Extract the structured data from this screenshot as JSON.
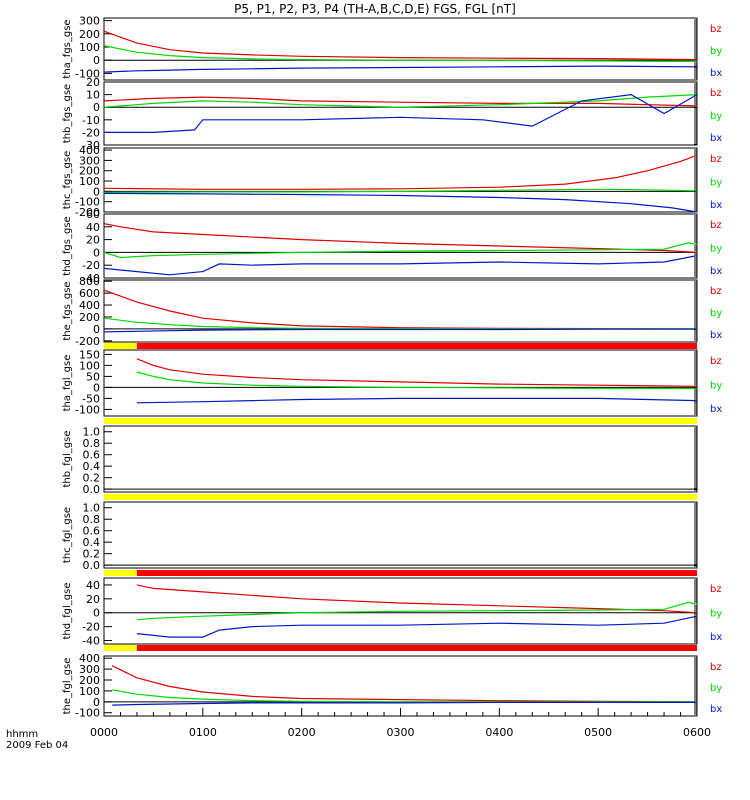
{
  "figure": {
    "title": "P5, P1, P2, P3, P4 (TH-A,B,C,D,E) FGS, FGL [nT]",
    "x_axis_label": "hhmm",
    "date_label": "2009 Feb 04",
    "x_ticks": [
      "0000",
      "0100",
      "0200",
      "0300",
      "0400",
      "0500",
      "0600"
    ],
    "colors": {
      "bx": "#0018c8",
      "by": "#00d800",
      "bz": "#e00000",
      "bar_yellow": "#ffff00",
      "bar_red": "#ff0000"
    }
  },
  "chart_data": [
    {
      "type": "line",
      "ylabel": "tha_fgs_gse",
      "ylim": [
        -150,
        320
      ],
      "yticks": [
        300,
        200,
        100,
        0,
        -100
      ],
      "x_range_min": [
        0,
        360
      ],
      "series": [
        {
          "name": "bz",
          "x": [
            0,
            20,
            40,
            60,
            90,
            120,
            180,
            240,
            300,
            360
          ],
          "values": [
            220,
            130,
            80,
            55,
            40,
            30,
            20,
            15,
            12,
            5
          ]
        },
        {
          "name": "by",
          "x": [
            0,
            20,
            40,
            60,
            90,
            120,
            180,
            240,
            300,
            360
          ],
          "values": [
            110,
            60,
            35,
            20,
            10,
            5,
            0,
            -2,
            -5,
            -10
          ]
        },
        {
          "name": "bx",
          "x": [
            0,
            20,
            40,
            60,
            90,
            120,
            180,
            240,
            300,
            360
          ],
          "values": [
            -90,
            -80,
            -75,
            -70,
            -65,
            -60,
            -55,
            -50,
            -45,
            -50
          ]
        }
      ]
    },
    {
      "type": "line",
      "ylabel": "thb_fgs_gse",
      "ylim": [
        -30,
        20
      ],
      "yticks": [
        20,
        10,
        0,
        -10,
        -20,
        -30
      ],
      "x_range_min": [
        0,
        360
      ],
      "series": [
        {
          "name": "bz",
          "x": [
            0,
            30,
            60,
            90,
            120,
            180,
            240,
            300,
            330,
            360
          ],
          "values": [
            5,
            7,
            8,
            7,
            5,
            4,
            3,
            3,
            2,
            1
          ]
        },
        {
          "name": "by",
          "x": [
            0,
            30,
            60,
            90,
            120,
            180,
            240,
            300,
            330,
            360
          ],
          "values": [
            0,
            3,
            5,
            4,
            2,
            0,
            2,
            5,
            8,
            10
          ]
        },
        {
          "name": "bx",
          "x": [
            0,
            30,
            55,
            60,
            120,
            180,
            230,
            260,
            290,
            320,
            340,
            360
          ],
          "values": [
            -20,
            -20,
            -18,
            -10,
            -10,
            -8,
            -10,
            -15,
            5,
            10,
            -5,
            10
          ]
        }
      ]
    },
    {
      "type": "line",
      "ylabel": "thc_fgs_gse",
      "ylim": [
        -200,
        420
      ],
      "yticks": [
        400,
        300,
        200,
        100,
        0,
        -100,
        -200
      ],
      "x_range_min": [
        0,
        360
      ],
      "series": [
        {
          "name": "bz",
          "x": [
            0,
            60,
            120,
            180,
            240,
            280,
            310,
            330,
            350,
            360
          ],
          "values": [
            30,
            20,
            20,
            25,
            40,
            70,
            130,
            200,
            290,
            350
          ]
        },
        {
          "name": "by",
          "x": [
            0,
            60,
            120,
            180,
            240,
            300,
            330,
            360
          ],
          "values": [
            -10,
            -5,
            -5,
            0,
            10,
            20,
            15,
            5
          ]
        },
        {
          "name": "bx",
          "x": [
            0,
            60,
            120,
            180,
            240,
            280,
            320,
            345,
            360
          ],
          "values": [
            -20,
            -25,
            -30,
            -40,
            -60,
            -80,
            -120,
            -160,
            -200
          ]
        }
      ]
    },
    {
      "type": "line",
      "ylabel": "thd_fgs_gse",
      "ylim": [
        -40,
        60
      ],
      "yticks": [
        60,
        40,
        20,
        0,
        -20,
        -40
      ],
      "x_range_min": [
        0,
        360
      ],
      "series": [
        {
          "name": "bz",
          "x": [
            0,
            10,
            30,
            60,
            120,
            180,
            240,
            300,
            340,
            360
          ],
          "values": [
            45,
            40,
            32,
            28,
            20,
            14,
            10,
            6,
            3,
            0
          ]
        },
        {
          "name": "by",
          "x": [
            0,
            10,
            30,
            60,
            120,
            180,
            240,
            300,
            340,
            355,
            360
          ],
          "values": [
            0,
            -8,
            -5,
            -3,
            0,
            2,
            3,
            4,
            5,
            15,
            12
          ]
        },
        {
          "name": "bx",
          "x": [
            0,
            20,
            40,
            60,
            70,
            90,
            120,
            180,
            240,
            300,
            340,
            360
          ],
          "values": [
            -25,
            -30,
            -35,
            -30,
            -18,
            -20,
            -18,
            -18,
            -15,
            -18,
            -15,
            -5
          ]
        }
      ]
    },
    {
      "type": "line",
      "ylabel": "the_fgs_gse",
      "ylim": [
        -220,
        820
      ],
      "yticks": [
        800,
        600,
        400,
        200,
        0,
        -200
      ],
      "x_range_min": [
        0,
        360
      ],
      "series": [
        {
          "name": "bz",
          "x": [
            0,
            20,
            40,
            60,
            90,
            120,
            180,
            240,
            300,
            360
          ],
          "values": [
            650,
            450,
            300,
            180,
            100,
            50,
            20,
            10,
            5,
            0
          ]
        },
        {
          "name": "by",
          "x": [
            0,
            20,
            40,
            60,
            90,
            120,
            180,
            240,
            300,
            360
          ],
          "values": [
            180,
            110,
            70,
            40,
            20,
            10,
            5,
            0,
            0,
            0
          ]
        },
        {
          "name": "bx",
          "x": [
            0,
            20,
            40,
            60,
            90,
            120,
            180,
            240,
            300,
            360
          ],
          "values": [
            -50,
            -40,
            -30,
            -20,
            -15,
            -10,
            -10,
            -10,
            -5,
            -5
          ]
        }
      ],
      "bar": [
        {
          "color": "yellow",
          "x": [
            0,
            20
          ]
        },
        {
          "color": "red",
          "x": [
            20,
            360
          ]
        }
      ]
    },
    {
      "type": "line",
      "ylabel": "tha_fgl_gse",
      "ylim": [
        -130,
        170
      ],
      "yticks": [
        150,
        100,
        50,
        0,
        -50,
        -100
      ],
      "x_range_min": [
        0,
        360
      ],
      "series": [
        {
          "name": "bz",
          "x": [
            20,
            30,
            40,
            60,
            90,
            120,
            180,
            240,
            300,
            360
          ],
          "values": [
            130,
            100,
            80,
            60,
            45,
            35,
            25,
            15,
            10,
            5
          ]
        },
        {
          "name": "by",
          "x": [
            20,
            30,
            40,
            60,
            90,
            120,
            180,
            240,
            300,
            360
          ],
          "values": [
            70,
            50,
            35,
            20,
            10,
            5,
            0,
            -2,
            -5,
            -5
          ]
        },
        {
          "name": "bx",
          "x": [
            20,
            60,
            90,
            120,
            180,
            240,
            300,
            360
          ],
          "values": [
            -70,
            -65,
            -60,
            -55,
            -50,
            -50,
            -50,
            -60
          ]
        }
      ],
      "bar": [
        {
          "color": "yellow",
          "x": [
            0,
            360
          ]
        }
      ]
    },
    {
      "type": "line",
      "ylabel": "thb_fgl_gse",
      "ylim": [
        -0.05,
        1.1
      ],
      "yticks": [
        1.0,
        0.8,
        0.6,
        0.4,
        0.2,
        0.0
      ],
      "x_range_min": [
        0,
        360
      ],
      "series": [],
      "bar": [
        {
          "color": "yellow",
          "x": [
            0,
            360
          ]
        }
      ]
    },
    {
      "type": "line",
      "ylabel": "thc_fgl_gse",
      "ylim": [
        -0.05,
        1.1
      ],
      "yticks": [
        1.0,
        0.8,
        0.6,
        0.4,
        0.2,
        0.0
      ],
      "x_range_min": [
        0,
        360
      ],
      "series": [],
      "bar": [
        {
          "color": "yellow",
          "x": [
            0,
            20
          ]
        },
        {
          "color": "red",
          "x": [
            20,
            360
          ]
        }
      ]
    },
    {
      "type": "line",
      "ylabel": "thd_fgl_gse",
      "ylim": [
        -45,
        50
      ],
      "yticks": [
        40,
        20,
        0,
        -20,
        -40
      ],
      "x_range_min": [
        0,
        360
      ],
      "series": [
        {
          "name": "bz",
          "x": [
            20,
            30,
            60,
            120,
            180,
            240,
            300,
            340,
            360
          ],
          "values": [
            40,
            35,
            30,
            20,
            14,
            10,
            6,
            3,
            0
          ]
        },
        {
          "name": "by",
          "x": [
            20,
            30,
            60,
            120,
            180,
            240,
            300,
            340,
            355,
            360
          ],
          "values": [
            -10,
            -8,
            -5,
            0,
            2,
            3,
            4,
            5,
            15,
            12
          ]
        },
        {
          "name": "bx",
          "x": [
            20,
            40,
            60,
            70,
            90,
            120,
            180,
            240,
            300,
            340,
            360
          ],
          "values": [
            -30,
            -35,
            -35,
            -25,
            -20,
            -18,
            -18,
            -15,
            -18,
            -15,
            -5
          ]
        }
      ],
      "bar": [
        {
          "color": "yellow",
          "x": [
            0,
            20
          ]
        },
        {
          "color": "red",
          "x": [
            20,
            360
          ]
        }
      ]
    },
    {
      "type": "line",
      "ylabel": "the_fgl_gse",
      "ylim": [
        -130,
        420
      ],
      "yticks": [
        400,
        300,
        200,
        100,
        0,
        -100
      ],
      "x_range_min": [
        0,
        360
      ],
      "series": [
        {
          "name": "bz",
          "x": [
            5,
            20,
            40,
            60,
            90,
            120,
            180,
            240,
            300,
            360
          ],
          "values": [
            330,
            220,
            140,
            90,
            50,
            30,
            20,
            10,
            5,
            0
          ]
        },
        {
          "name": "by",
          "x": [
            5,
            20,
            40,
            60,
            90,
            120,
            180,
            240,
            300,
            360
          ],
          "values": [
            110,
            70,
            40,
            25,
            10,
            5,
            0,
            0,
            0,
            0
          ]
        },
        {
          "name": "bx",
          "x": [
            5,
            20,
            40,
            60,
            90,
            120,
            180,
            240,
            300,
            360
          ],
          "values": [
            -30,
            -25,
            -20,
            -15,
            -10,
            -10,
            -10,
            -5,
            -5,
            -5
          ]
        }
      ]
    }
  ]
}
